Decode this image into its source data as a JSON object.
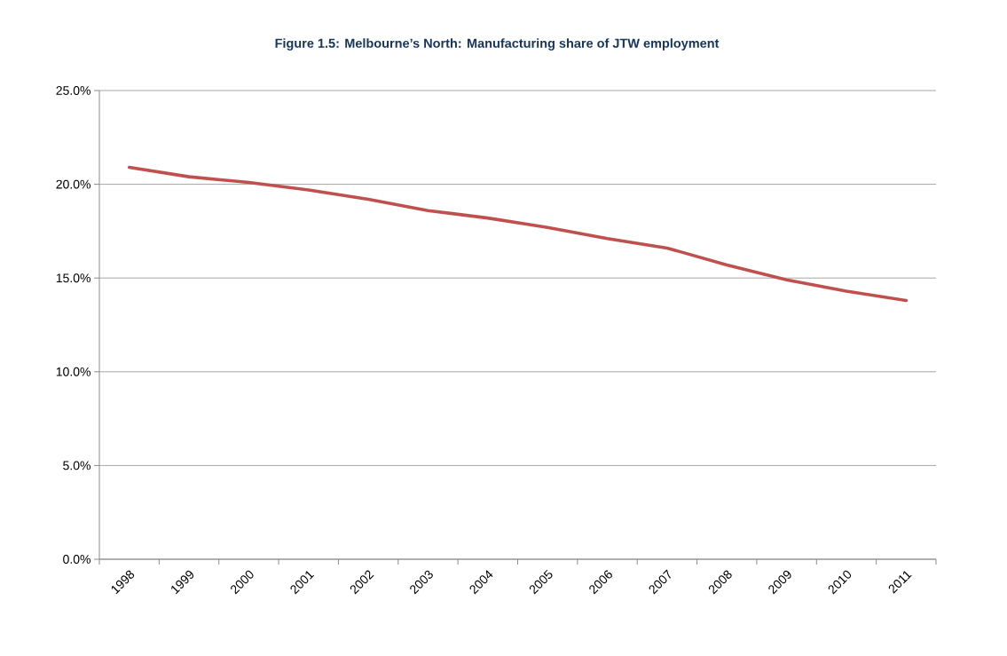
{
  "chart_data": {
    "type": "line",
    "title": "Figure 1.5: Melbourne’s North: Manufacturing share of JTW employment",
    "categories": [
      "1998",
      "1999",
      "2000",
      "2001",
      "2002",
      "2003",
      "2004",
      "2005",
      "2006",
      "2007",
      "2008",
      "2009",
      "2010",
      "2011"
    ],
    "series": [
      {
        "color": "#c0504d",
        "values": [
          20.9,
          20.4,
          20.1,
          19.7,
          19.2,
          18.6,
          18.2,
          17.7,
          17.1,
          16.6,
          15.7,
          14.9,
          14.3,
          13.8
        ]
      }
    ],
    "ylim": [
      0,
      25
    ],
    "yticks": [
      {
        "value": 0,
        "label": "0.0%"
      },
      {
        "value": 5,
        "label": "5.0%"
      },
      {
        "value": 10,
        "label": "10.0%"
      },
      {
        "value": 15,
        "label": "15.0%"
      },
      {
        "value": 20,
        "label": "20.0%"
      },
      {
        "value": 25,
        "label": "25.0%"
      }
    ],
    "grid": "y",
    "marker": "none",
    "line_style": "solid"
  }
}
